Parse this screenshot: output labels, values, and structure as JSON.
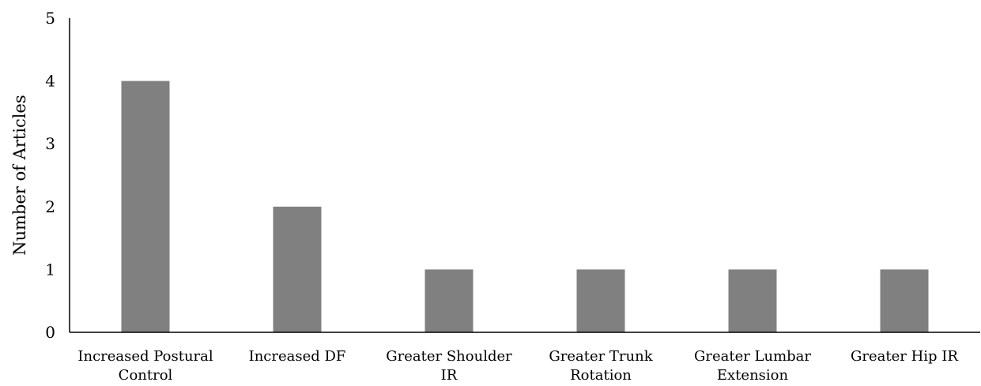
{
  "chart_data": {
    "type": "bar",
    "title": "",
    "xlabel": "",
    "ylabel": "Number of Articles",
    "ylim": [
      0,
      5
    ],
    "yticks": [
      "0",
      "1",
      "2",
      "3",
      "4",
      "5"
    ],
    "grid": false,
    "legend": "none",
    "bar_color": "#808080",
    "categories": [
      [
        "Increased Postural",
        "Control"
      ],
      [
        "Increased DF"
      ],
      [
        "Greater Shoulder",
        "IR"
      ],
      [
        "Greater Trunk",
        "Rotation"
      ],
      [
        "Greater Lumbar",
        "Extension"
      ],
      [
        "Greater Hip IR"
      ]
    ],
    "values": [
      4,
      2,
      1,
      1,
      1,
      1
    ]
  }
}
